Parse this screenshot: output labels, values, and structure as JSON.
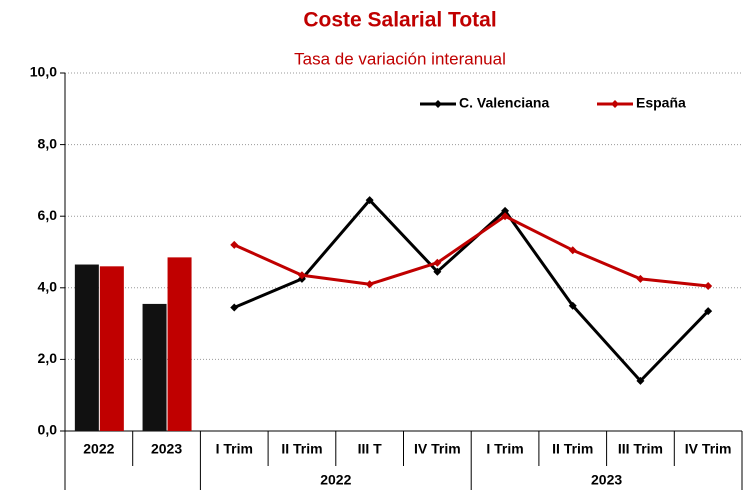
{
  "chart_data": {
    "type": "combo",
    "title": "Coste Salarial Total",
    "subtitle": "Tasa de variación interanual",
    "annual_categories": [
      "2022",
      "2023"
    ],
    "quarter_groups": [
      {
        "name": "2022",
        "categories": [
          "I Trim",
          "II Trim",
          "III T",
          "IV Trim"
        ]
      },
      {
        "name": "2023",
        "categories": [
          "I Trim",
          "II Trim",
          "III Trim",
          "IV Trim"
        ]
      }
    ],
    "series": [
      {
        "name": "C. Valenciana",
        "color": "#000000",
        "bar_color": "#111111",
        "bar_values": [
          4.65,
          3.55
        ],
        "values": [
          3.45,
          4.25,
          6.45,
          4.45,
          6.15,
          3.5,
          1.4,
          3.35
        ]
      },
      {
        "name": "España",
        "color": "#c00000",
        "bar_color": "#c00000",
        "bar_values": [
          4.6,
          4.85
        ],
        "values": [
          5.2,
          4.35,
          4.1,
          4.7,
          6.0,
          5.05,
          4.25,
          4.05
        ]
      }
    ],
    "ylim": [
      0,
      10
    ],
    "yticks": [
      {
        "value": 0,
        "label": "0,0"
      },
      {
        "value": 2,
        "label": "2,0"
      },
      {
        "value": 4,
        "label": "4,0"
      },
      {
        "value": 6,
        "label": "6,0"
      },
      {
        "value": 8,
        "label": "8,0"
      },
      {
        "value": 10,
        "label": "10,0"
      }
    ],
    "grid": true
  }
}
